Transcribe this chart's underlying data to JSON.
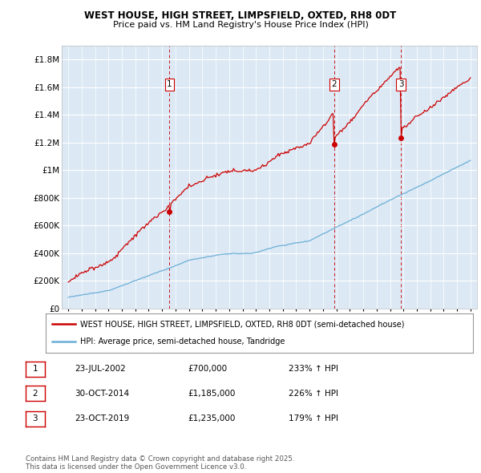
{
  "title": "WEST HOUSE, HIGH STREET, LIMPSFIELD, OXTED, RH8 0DT",
  "subtitle": "Price paid vs. HM Land Registry's House Price Index (HPI)",
  "bg_color": "#dce9f5",
  "hpi_color": "#6baed6",
  "price_color": "#cc0000",
  "vline_color": "#cc0000",
  "sales": [
    {
      "date_num": 2002.55,
      "price": 700000,
      "label": "1"
    },
    {
      "date_num": 2014.83,
      "price": 1185000,
      "label": "2"
    },
    {
      "date_num": 2019.81,
      "price": 1235000,
      "label": "3"
    }
  ],
  "sale_table": [
    {
      "num": "1",
      "date": "23-JUL-2002",
      "price": "£700,000",
      "hpi": "233% ↑ HPI"
    },
    {
      "num": "2",
      "date": "30-OCT-2014",
      "price": "£1,185,000",
      "hpi": "226% ↑ HPI"
    },
    {
      "num": "3",
      "date": "23-OCT-2019",
      "price": "£1,235,000",
      "hpi": "179% ↑ HPI"
    }
  ],
  "legend_entries": [
    "WEST HOUSE, HIGH STREET, LIMPSFIELD, OXTED, RH8 0DT (semi-detached house)",
    "HPI: Average price, semi-detached house, Tandridge"
  ],
  "footer": "Contains HM Land Registry data © Crown copyright and database right 2025.\nThis data is licensed under the Open Government Licence v3.0.",
  "ylim": [
    0,
    1900000
  ],
  "yticks": [
    0,
    200000,
    400000,
    600000,
    800000,
    1000000,
    1200000,
    1400000,
    1600000,
    1800000
  ],
  "ytick_labels": [
    "£0",
    "£200K",
    "£400K",
    "£600K",
    "£800K",
    "£1M",
    "£1.2M",
    "£1.4M",
    "£1.6M",
    "£1.8M"
  ],
  "xmin": 1994.5,
  "xmax": 2025.5
}
